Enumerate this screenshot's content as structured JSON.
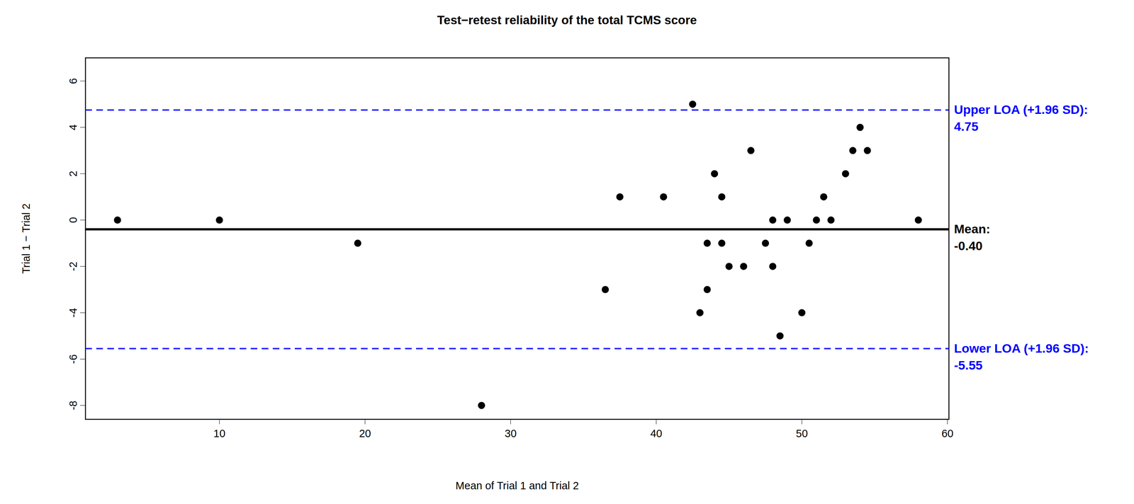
{
  "chart_data": {
    "type": "scatter",
    "title": "Test−retest reliability of the total TCMS score",
    "x_label": "Mean of Trial 1 and Trial 2",
    "y_label": "Trial 1 − Trial 2",
    "x": [
      3,
      10,
      19.5,
      28,
      36.5,
      37.5,
      40.5,
      42.5,
      43,
      43.5,
      43.5,
      44,
      44.5,
      44.5,
      45,
      46,
      46.5,
      47.5,
      48,
      48,
      48.5,
      49,
      50,
      50.5,
      51,
      51.5,
      52,
      53,
      53.5,
      54,
      54.5,
      58
    ],
    "y": [
      0,
      0,
      -1,
      -8,
      -3,
      1,
      1,
      5,
      -4,
      -1,
      -3,
      2,
      1,
      -1,
      -2,
      -2,
      3,
      -1,
      0,
      -2,
      -5,
      0,
      -4,
      -1,
      0,
      1,
      0,
      2,
      3,
      4,
      3,
      0
    ],
    "color": "#000000",
    "marker": "circle",
    "xlim": [
      0.8,
      60.1
    ],
    "ylim": [
      -8.6,
      7
    ],
    "xticks": [
      10,
      20,
      30,
      40,
      50,
      60
    ],
    "yticks": [
      -8,
      -6,
      -4,
      -2,
      0,
      2,
      4,
      6
    ],
    "reference_lines": [
      {
        "text": "Upper LOA (+1.96 SD):",
        "value": 4.75,
        "value_label": "4.75",
        "color": "#0000ff",
        "line_style": "dashed"
      },
      {
        "text": "Mean:",
        "value": -0.4,
        "value_label": "-0.40",
        "color": "#000000",
        "line_style": "solid"
      },
      {
        "text": "Lower LOA (+1.96 SD):",
        "value": -5.55,
        "value_label": "-5.55",
        "color": "#0000ff",
        "line_style": "dashed"
      }
    ]
  }
}
